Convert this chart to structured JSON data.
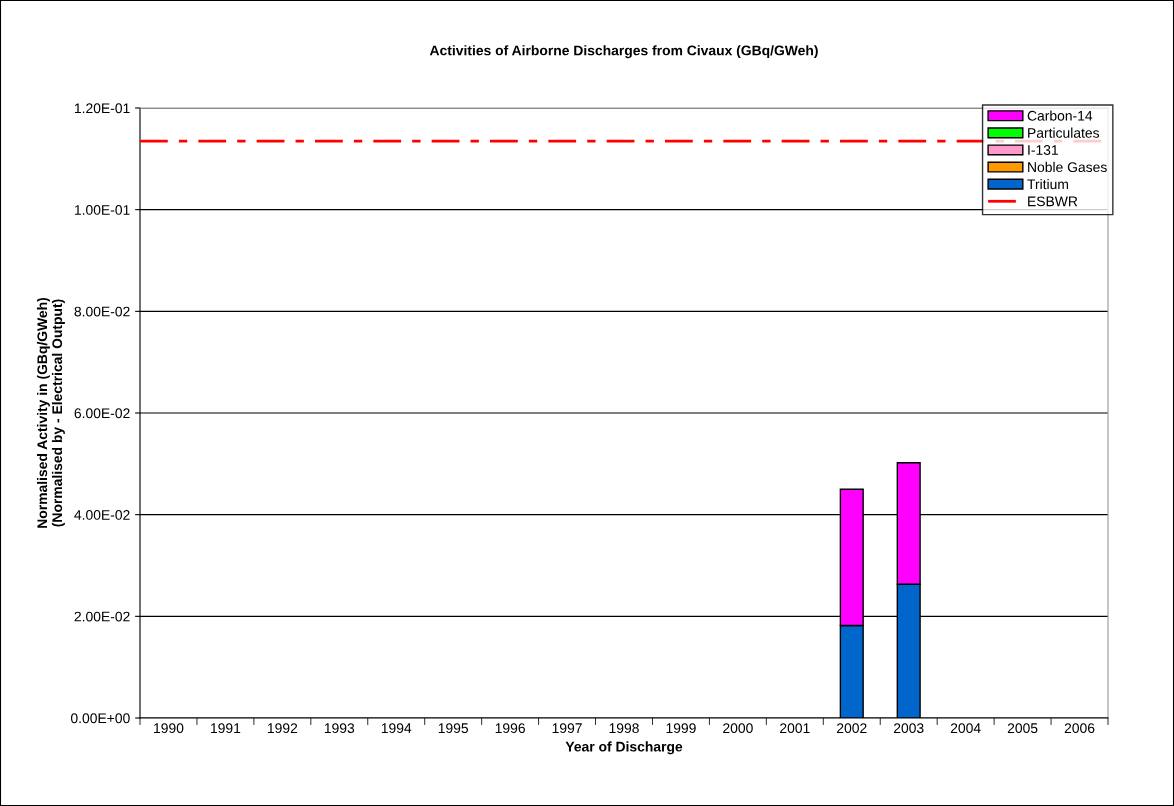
{
  "chart_data": {
    "type": "bar",
    "title": "Activities of Airborne Discharges from Civaux (GBq/GWeh)",
    "xlabel": "Year of Discharge",
    "ylabel": "Normalised Activity in (GBq/GWeh)\n(Normalised by - Electrical Output)",
    "categories": [
      "1990",
      "1991",
      "1992",
      "1993",
      "1994",
      "1995",
      "1996",
      "1997",
      "1998",
      "1999",
      "2000",
      "2001",
      "2002",
      "2003",
      "2004",
      "2005",
      "2006"
    ],
    "stacked": true,
    "series": [
      {
        "name": "Tritium",
        "color": "#0066cc",
        "values": [
          null,
          null,
          null,
          null,
          null,
          null,
          null,
          null,
          null,
          null,
          null,
          null,
          0.0182,
          0.0263,
          null,
          null,
          null
        ]
      },
      {
        "name": "Noble Gases",
        "color": "#ff9900",
        "values": [
          null,
          null,
          null,
          null,
          null,
          null,
          null,
          null,
          null,
          null,
          null,
          null,
          null,
          null,
          null,
          null,
          null
        ]
      },
      {
        "name": "I-131",
        "color": "#ff99cc",
        "values": [
          null,
          null,
          null,
          null,
          null,
          null,
          null,
          null,
          null,
          null,
          null,
          null,
          null,
          null,
          null,
          null,
          null
        ]
      },
      {
        "name": "Particulates",
        "color": "#00ff00",
        "values": [
          null,
          null,
          null,
          null,
          null,
          null,
          null,
          null,
          null,
          null,
          null,
          null,
          null,
          null,
          null,
          null,
          null
        ]
      },
      {
        "name": "Carbon-14",
        "color": "#ff00ff",
        "values": [
          null,
          null,
          null,
          null,
          null,
          null,
          null,
          null,
          null,
          null,
          null,
          null,
          0.0268,
          0.0239,
          null,
          null,
          null
        ]
      }
    ],
    "ref_lines": [
      {
        "axis": "y",
        "value": 0.1135,
        "label": "ESBWR",
        "color": "#ff0000",
        "line_style": "dashdot"
      }
    ],
    "ylim": [
      0,
      0.12
    ],
    "yticks": [
      {
        "value": 0,
        "label": "0.00E+00"
      },
      {
        "value": 0.02,
        "label": "2.00E-02"
      },
      {
        "value": 0.04,
        "label": "4.00E-02"
      },
      {
        "value": 0.06,
        "label": "6.00E-02"
      },
      {
        "value": 0.08,
        "label": "8.00E-02"
      },
      {
        "value": 0.1,
        "label": "1.00E-01"
      },
      {
        "value": 0.12,
        "label": "1.20E-01"
      }
    ],
    "grid": "y",
    "legend": "top right"
  }
}
